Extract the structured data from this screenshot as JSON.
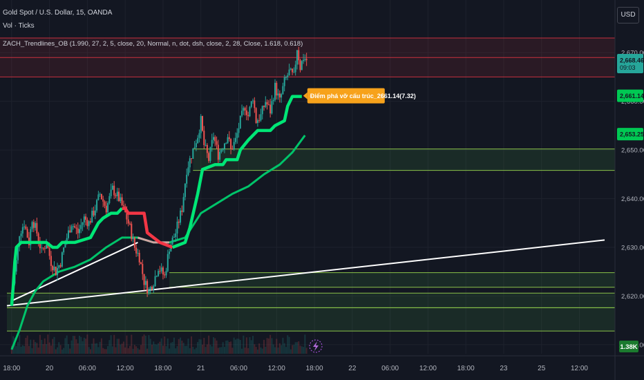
{
  "header": {
    "symbol": "Gold Spot / U.S. Dollar, 15, OANDA",
    "volume": "Vol · Ticks",
    "indicator": "ZACH_Trendlines_OB (1.990, 27, 2, 5, close, 20, Normal, n, dot, dsh, close, 2, 28, Close, 1.618, 0.618)"
  },
  "currency_button": "USD",
  "annotation": "Điểm phá vỡ cấu trúc_2661.14(7.32)",
  "price_tags": [
    {
      "value": 2668.465,
      "text": "2,668.465",
      "sub": "09:03",
      "color": "#26a69a",
      "text_color": "#131722"
    },
    {
      "value": 2661.144,
      "text": "2,661.144",
      "color": "#00c853",
      "text_color": "#131722"
    },
    {
      "value": 2653.252,
      "text": "2,653.252",
      "color": "#00c853",
      "text_color": "#131722"
    }
  ],
  "volume_tag": {
    "text": "1.38K",
    "color": "#1b7a2e"
  },
  "colors": {
    "background": "#131722",
    "grid": "#1e222d",
    "candle_up": "#26a69a",
    "candle_down": "#ef5350",
    "trend_up": "#00e676",
    "trend_down": "#f23645",
    "ma": "#00c46a",
    "trendline": "#ffffff",
    "zone_fill": "rgba(76,175,80,0.13)",
    "zone_border": "#8bc34a",
    "res_fill": "rgba(242,54,69,0.10)",
    "res_border": "#f23645",
    "annotation_bg": "#f7a21b"
  },
  "chart_data": {
    "type": "candlestick",
    "ylim": [
      2607,
      2674
    ],
    "y_ticks": [
      2610,
      2620,
      2630,
      2640,
      2650,
      2660,
      2670
    ],
    "y_tick_labels": [
      "2,610.000",
      "2,620.000",
      "2,630.000",
      "2,640.000",
      "2,650.000",
      "2,660.000",
      "2,670.000"
    ],
    "x_ticks": [
      {
        "i": 0,
        "label": "18:00"
      },
      {
        "i": 24,
        "label": "20"
      },
      {
        "i": 48,
        "label": "06:00"
      },
      {
        "i": 72,
        "label": "12:00"
      },
      {
        "i": 96,
        "label": "18:00"
      },
      {
        "i": 120,
        "label": "21"
      },
      {
        "i": 144,
        "label": "06:00"
      },
      {
        "i": 168,
        "label": "12:00"
      },
      {
        "i": 192,
        "label": "18:00"
      },
      {
        "i": 216,
        "label": "22"
      },
      {
        "i": 240,
        "label": "06:00"
      },
      {
        "i": 264,
        "label": "12:00"
      },
      {
        "i": 288,
        "label": "18:00"
      },
      {
        "i": 312,
        "label": "23"
      },
      {
        "i": 336,
        "label": "25"
      },
      {
        "i": 360,
        "label": "12:00"
      }
    ],
    "x_range": [
      -3,
      376
    ],
    "price_path": [
      [
        0,
        2620.5
      ],
      [
        3,
        2627
      ],
      [
        5,
        2633
      ],
      [
        8,
        2635
      ],
      [
        11,
        2631
      ],
      [
        13,
        2636
      ],
      [
        16,
        2633
      ],
      [
        19,
        2629
      ],
      [
        22,
        2631
      ],
      [
        25,
        2627
      ],
      [
        28,
        2625
      ],
      [
        31,
        2627
      ],
      [
        34,
        2631
      ],
      [
        38,
        2635
      ],
      [
        42,
        2633
      ],
      [
        46,
        2636
      ],
      [
        49,
        2635
      ],
      [
        53,
        2638
      ],
      [
        56,
        2641
      ],
      [
        60,
        2638
      ],
      [
        64,
        2642
      ],
      [
        68,
        2640
      ],
      [
        72,
        2637
      ],
      [
        75,
        2634
      ],
      [
        78,
        2630
      ],
      [
        81,
        2628
      ],
      [
        84,
        2623
      ],
      [
        87,
        2621
      ],
      [
        90,
        2623
      ],
      [
        93,
        2626
      ],
      [
        97,
        2624
      ],
      [
        100,
        2630
      ],
      [
        104,
        2633
      ],
      [
        108,
        2638
      ],
      [
        111,
        2646
      ],
      [
        114,
        2649
      ],
      [
        118,
        2653
      ],
      [
        120,
        2656
      ],
      [
        122,
        2651
      ],
      [
        125,
        2648
      ],
      [
        128,
        2653
      ],
      [
        131,
        2649
      ],
      [
        134,
        2651
      ],
      [
        137,
        2653
      ],
      [
        139,
        2650
      ],
      [
        142,
        2652
      ],
      [
        145,
        2656
      ],
      [
        148,
        2659
      ],
      [
        150,
        2657
      ],
      [
        153,
        2661
      ],
      [
        155,
        2656
      ],
      [
        158,
        2657
      ],
      [
        161,
        2660
      ],
      [
        164,
        2658
      ],
      [
        167,
        2663
      ],
      [
        170,
        2660
      ],
      [
        173,
        2664
      ],
      [
        176,
        2666
      ],
      [
        179,
        2665
      ],
      [
        181,
        2671
      ],
      [
        183,
        2667
      ],
      [
        185,
        2669
      ],
      [
        187,
        2668.5
      ]
    ],
    "trend_line": [
      {
        "color": "up",
        "points": [
          [
            0,
            2618
          ],
          [
            1,
            2622
          ],
          [
            2,
            2627
          ],
          [
            3,
            2630
          ],
          [
            6,
            2631
          ],
          [
            22,
            2631
          ],
          [
            26,
            2630
          ],
          [
            29,
            2630
          ],
          [
            32,
            2631
          ],
          [
            40,
            2631
          ],
          [
            50,
            2632
          ],
          [
            55,
            2635
          ],
          [
            58,
            2636
          ],
          [
            63,
            2637
          ],
          [
            67,
            2637
          ],
          [
            70,
            2638
          ]
        ]
      },
      {
        "color": "down",
        "points": [
          [
            70,
            2638
          ],
          [
            72,
            2638
          ],
          [
            74,
            2637
          ],
          [
            84,
            2637
          ],
          [
            86,
            2633
          ],
          [
            90,
            2632
          ],
          [
            94,
            2631
          ],
          [
            98,
            2630.5
          ],
          [
            102,
            2630
          ]
        ]
      },
      {
        "color": "up",
        "points": [
          [
            102,
            2630
          ],
          [
            110,
            2631
          ],
          [
            113,
            2634
          ],
          [
            118,
            2641
          ],
          [
            121,
            2646
          ],
          [
            125,
            2646.5
          ],
          [
            129,
            2647
          ],
          [
            134,
            2647
          ],
          [
            136,
            2648
          ],
          [
            143,
            2648
          ],
          [
            145,
            2650
          ],
          [
            150,
            2652
          ],
          [
            156,
            2654
          ],
          [
            164,
            2654
          ],
          [
            167,
            2655
          ],
          [
            173,
            2656
          ],
          [
            175,
            2659
          ],
          [
            178,
            2661
          ],
          [
            181,
            2661
          ],
          [
            184,
            2661
          ]
        ]
      }
    ],
    "moving_average": [
      [
        0,
        2609
      ],
      [
        5,
        2613
      ],
      [
        10,
        2618
      ],
      [
        15,
        2621
      ],
      [
        20,
        2623
      ],
      [
        30,
        2625
      ],
      [
        40,
        2626
      ],
      [
        50,
        2627.5
      ],
      [
        60,
        2630
      ],
      [
        70,
        2632
      ],
      [
        80,
        2632
      ],
      [
        90,
        2631
      ],
      [
        100,
        2631
      ],
      [
        110,
        2632
      ],
      [
        120,
        2637
      ],
      [
        130,
        2639
      ],
      [
        140,
        2641
      ],
      [
        150,
        2642.5
      ],
      [
        160,
        2645
      ],
      [
        170,
        2647
      ],
      [
        178,
        2649.5
      ],
      [
        186,
        2653
      ]
    ],
    "ma_dim_segment": [
      80,
      100
    ],
    "trendlines": [
      {
        "from": [
          0,
          2619
        ],
        "to": [
          80,
          2631
        ]
      },
      {
        "from": [
          -3,
          2618
        ],
        "to": [
          376,
          2631.5
        ]
      }
    ],
    "zones": [
      {
        "y_top": 2650.2,
        "y_bottom": 2645.8,
        "x_start": 115
      },
      {
        "y_top": 2624.8,
        "y_bottom": 2621.8,
        "x_start": 100
      },
      {
        "y_top": 2620.6,
        "y_bottom": 2617.6,
        "x_start": -3
      },
      {
        "y_top": 2617.6,
        "y_bottom": 2612.8,
        "x_start": -3
      }
    ],
    "resistance_zone": {
      "y_top": 2673,
      "y_bottom": 2665
    },
    "resistance_lines": [
      2669.0
    ],
    "annotation_at": {
      "i": 184,
      "y": 2661.14
    }
  }
}
